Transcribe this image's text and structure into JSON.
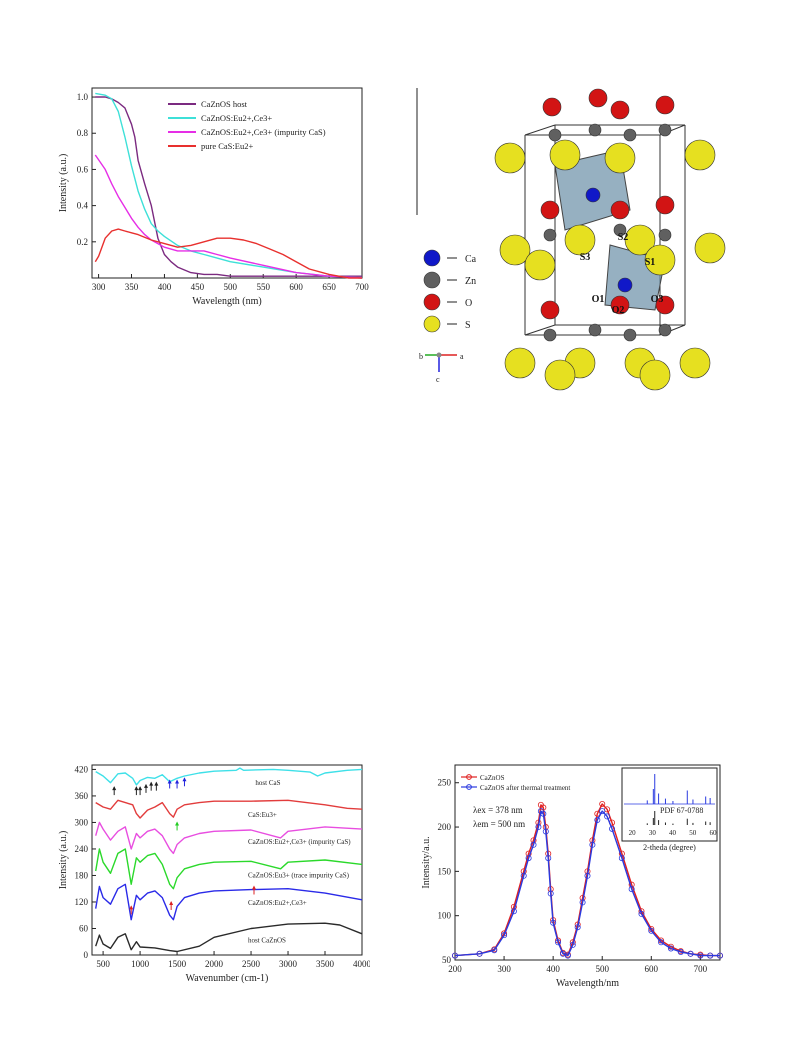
{
  "panels": {
    "absorption": {
      "chart_data": {
        "type": "line",
        "xlabel": "Wavelength (nm)",
        "ylabel": "Intensity (a.u.)",
        "xlim": [
          290,
          700
        ],
        "ylim": [
          0,
          1.05
        ],
        "xticks": [
          "300",
          "350",
          "400",
          "450",
          "500",
          "550",
          "600",
          "650",
          "700"
        ],
        "yticks": [
          "0.2",
          "0.4",
          "0.6",
          "0.8",
          "1.0"
        ],
        "legend": "top-right",
        "series": [
          {
            "name": "CaZnOS host",
            "color": "#7b2a80",
            "x": [
              295,
              310,
              320,
              330,
              340,
              350,
              355,
              360,
              370,
              380,
              390,
              400,
              410,
              420,
              440,
              460,
              480,
              500,
              550,
              600,
              650,
              700
            ],
            "y": [
              1.0,
              1.0,
              0.99,
              0.97,
              0.94,
              0.85,
              0.78,
              0.65,
              0.52,
              0.4,
              0.22,
              0.13,
              0.09,
              0.06,
              0.03,
              0.02,
              0.02,
              0.01,
              0.01,
              0.01,
              0.01,
              0.01
            ]
          },
          {
            "name": "CaZnOS:Eu2+,Ce3+",
            "color": "#3ee0d8",
            "x": [
              295,
              310,
              320,
              330,
              340,
              350,
              360,
              370,
              380,
              390,
              400,
              420,
              440,
              460,
              480,
              500,
              550,
              600,
              650,
              700
            ],
            "y": [
              1.02,
              1.01,
              0.99,
              0.92,
              0.78,
              0.62,
              0.48,
              0.38,
              0.3,
              0.26,
              0.23,
              0.18,
              0.15,
              0.13,
              0.11,
              0.09,
              0.06,
              0.03,
              0.01,
              0.0
            ]
          },
          {
            "name": "CaZnOS:Eu2+,Ce3+ (impurity CaS)",
            "color": "#e62ee6",
            "x": [
              295,
              310,
              320,
              330,
              340,
              350,
              360,
              370,
              380,
              390,
              400,
              420,
              440,
              460,
              480,
              500,
              550,
              600,
              650,
              700
            ],
            "y": [
              0.68,
              0.6,
              0.52,
              0.45,
              0.39,
              0.33,
              0.28,
              0.24,
              0.21,
              0.19,
              0.17,
              0.15,
              0.15,
              0.15,
              0.13,
              0.11,
              0.07,
              0.03,
              0.01,
              0.0
            ]
          },
          {
            "name": "pure CaS:Eu2+",
            "color": "#e8302e",
            "x": [
              295,
              300,
              310,
              320,
              330,
              340,
              350,
              360,
              380,
              400,
              420,
              440,
              460,
              480,
              500,
              520,
              540,
              560,
              580,
              600,
              620,
              650,
              680,
              700
            ],
            "y": [
              0.09,
              0.12,
              0.22,
              0.26,
              0.27,
              0.26,
              0.25,
              0.24,
              0.21,
              0.19,
              0.17,
              0.18,
              0.2,
              0.22,
              0.22,
              0.21,
              0.19,
              0.16,
              0.13,
              0.09,
              0.05,
              0.02,
              0.0,
              0.0
            ]
          }
        ]
      }
    },
    "structure": {
      "legend_items": [
        {
          "label": "Ca",
          "color": "#1018c8"
        },
        {
          "label": "Zn",
          "color": "#606060"
        },
        {
          "label": "O",
          "color": "#d21414"
        },
        {
          "label": "S",
          "color": "#e6e020"
        }
      ],
      "site_labels": [
        "S2",
        "S3",
        "S1",
        "O1",
        "O3",
        "O2"
      ],
      "axes": {
        "a": "a",
        "b": "b",
        "c": "c"
      }
    },
    "ftir": {
      "chart_data": {
        "type": "line",
        "xlabel": "Wavenumber (cm-1)",
        "ylabel": "Intensity (a.u.)",
        "xlim": [
          350,
          4000
        ],
        "ylim": [
          0,
          430
        ],
        "xticks": [
          "500",
          "1000",
          "1500",
          "2000",
          "2500",
          "3000",
          "3500",
          "4000"
        ],
        "yticks": [
          "0",
          "60",
          "120",
          "180",
          "240",
          "300",
          "360",
          "420"
        ],
        "series": [
          {
            "name": "host CaS",
            "color": "#3ee0e8",
            "x": [
              400,
              500,
              600,
              700,
              800,
              900,
              950,
              1000,
              1100,
              1200,
              1300,
              1400,
              1450,
              1500,
              1600,
              1800,
              2000,
              2300,
              2350,
              2400,
              2800,
              3000,
              3300,
              3400,
              3500,
              3800,
              4000
            ],
            "y": [
              415,
              405,
              390,
              410,
              412,
              400,
              385,
              395,
              402,
              400,
              408,
              392,
              396,
              400,
              405,
              412,
              416,
              418,
              423,
              418,
              420,
              418,
              414,
              405,
              412,
              418,
              420
            ]
          },
          {
            "name": "CaS:Eu3+",
            "color": "#e23c3c",
            "x": [
              400,
              500,
              600,
              700,
              800,
              900,
              950,
              1000,
              1100,
              1200,
              1300,
              1400,
              1450,
              1500,
              1600,
              1800,
              2000,
              2500,
              3000,
              3500,
              3800,
              4000
            ],
            "y": [
              345,
              335,
              330,
              350,
              345,
              340,
              320,
              310,
              328,
              335,
              345,
              320,
              312,
              330,
              340,
              345,
              348,
              348,
              350,
              340,
              332,
              330
            ]
          },
          {
            "name": "CaZnOS:Eu2+,Ce3+ (impurity CaS)",
            "color": "#e84ee0",
            "x": [
              400,
              450,
              500,
              600,
              700,
              800,
              880,
              950,
              1000,
              1100,
              1200,
              1300,
              1400,
              1450,
              1500,
              1600,
              1800,
              2000,
              2500,
              2900,
              3000,
              3500,
              4000
            ],
            "y": [
              270,
              300,
              285,
              260,
              280,
              290,
              240,
              275,
              265,
              280,
              285,
              270,
              240,
              230,
              250,
              265,
              275,
              280,
              283,
              265,
              280,
              290,
              285
            ]
          },
          {
            "name": "CaZnOS:Eu3+ (trace impurity CaS)",
            "color": "#2bd92b",
            "x": [
              400,
              450,
              500,
              600,
              700,
              800,
              880,
              950,
              1000,
              1100,
              1200,
              1300,
              1400,
              1450,
              1500,
              1600,
              1800,
              2000,
              2500,
              2900,
              3000,
              3500,
              4000
            ],
            "y": [
              190,
              240,
              210,
              185,
              230,
              240,
              160,
              220,
              210,
              225,
              230,
              205,
              160,
              150,
              175,
              195,
              205,
              210,
              212,
              195,
              210,
              215,
              205
            ]
          },
          {
            "name": "CaZnOS:Eu2+,Ce3+",
            "color": "#2a2ae8",
            "x": [
              400,
              450,
              500,
              600,
              700,
              800,
              880,
              950,
              1000,
              1100,
              1200,
              1300,
              1400,
              1450,
              1500,
              1600,
              1800,
              2000,
              2500,
              3000,
              3500,
              4000
            ],
            "y": [
              105,
              155,
              130,
              115,
              150,
              160,
              80,
              135,
              125,
              140,
              145,
              130,
              90,
              80,
              110,
              130,
              140,
              145,
              148,
              150,
              140,
              125
            ]
          },
          {
            "name": "host CaZnOS",
            "color": "#2a2a2a",
            "x": [
              400,
              450,
              500,
              600,
              700,
              800,
              880,
              950,
              1000,
              1200,
              1400,
              1500,
              1800,
              2000,
              2500,
              3000,
              3500,
              3700,
              4000
            ],
            "y": [
              20,
              45,
              25,
              15,
              40,
              48,
              12,
              30,
              18,
              16,
              10,
              8,
              20,
              40,
              60,
              70,
              72,
              68,
              48
            ]
          }
        ],
        "annotations": [
          "host CaS",
          "CaS:Eu3+",
          "CaZnOS:Eu2+,Ce3+ (impurity CaS)",
          "CaZnOS:Eu3+ (trace impurity CaS)",
          "CaZnOS:Eu2+,Ce3+",
          "host CaZnOS"
        ]
      }
    },
    "pl": {
      "chart_data": {
        "type": "line",
        "xlabel": "Wavelength/nm",
        "ylabel": "Intensity/a.u.",
        "xlim": [
          200,
          740
        ],
        "ylim": [
          50,
          270
        ],
        "xticks": [
          "200",
          "300",
          "400",
          "500",
          "600",
          "700"
        ],
        "yticks": [
          "50",
          "100",
          "150",
          "200",
          "250"
        ],
        "legend": "top-left",
        "series": [
          {
            "name": "CaZnOS",
            "color": "#e02020",
            "x": [
              200,
              250,
              280,
              300,
              320,
              340,
              350,
              360,
              370,
              375,
              380,
              385,
              390,
              395,
              400,
              410,
              420,
              430,
              440,
              450,
              460,
              470,
              480,
              490,
              500,
              510,
              520,
              540,
              560,
              580,
              600,
              620,
              640,
              660,
              680,
              700,
              720,
              740
            ],
            "y": [
              55,
              57,
              62,
              80,
              110,
              150,
              170,
              185,
              205,
              225,
              222,
              200,
              170,
              130,
              95,
              72,
              58,
              56,
              70,
              90,
              120,
              150,
              185,
              215,
              226,
              220,
              205,
              170,
              135,
              105,
              85,
              72,
              65,
              60,
              57,
              56,
              55,
              55
            ]
          },
          {
            "name": "CaZnOS after thermal treatment",
            "color": "#2a3ae0",
            "x": [
              200,
              250,
              280,
              300,
              320,
              340,
              350,
              360,
              370,
              375,
              380,
              385,
              390,
              395,
              400,
              410,
              420,
              430,
              440,
              450,
              460,
              470,
              480,
              490,
              500,
              510,
              520,
              540,
              560,
              580,
              600,
              620,
              640,
              660,
              680,
              700,
              720,
              740
            ],
            "y": [
              55,
              57,
              61,
              78,
              105,
              145,
              165,
              180,
              200,
              218,
              215,
              195,
              165,
              125,
              92,
              70,
              57,
              55,
              67,
              87,
              115,
              145,
              180,
              208,
              218,
              212,
              198,
              165,
              130,
              102,
              83,
              70,
              63,
              59,
              57,
              55,
              55,
              55
            ]
          }
        ],
        "annotations": [
          "λex = 378 nm",
          "λem = 500 nm"
        ],
        "inset": {
          "xlabel": "2-theda (degree)",
          "xticks": [
            "20",
            "30",
            "40",
            "50",
            "60"
          ],
          "reference": "PDF 67-0788",
          "peaks_x": [
            27.5,
            30.5,
            31.2,
            33.1,
            36.5,
            40.2,
            47.3,
            50.1,
            56.4,
            58.6
          ],
          "peaks_rel": [
            0.12,
            0.5,
            1.0,
            0.35,
            0.18,
            0.1,
            0.45,
            0.15,
            0.25,
            0.2
          ]
        }
      }
    }
  }
}
